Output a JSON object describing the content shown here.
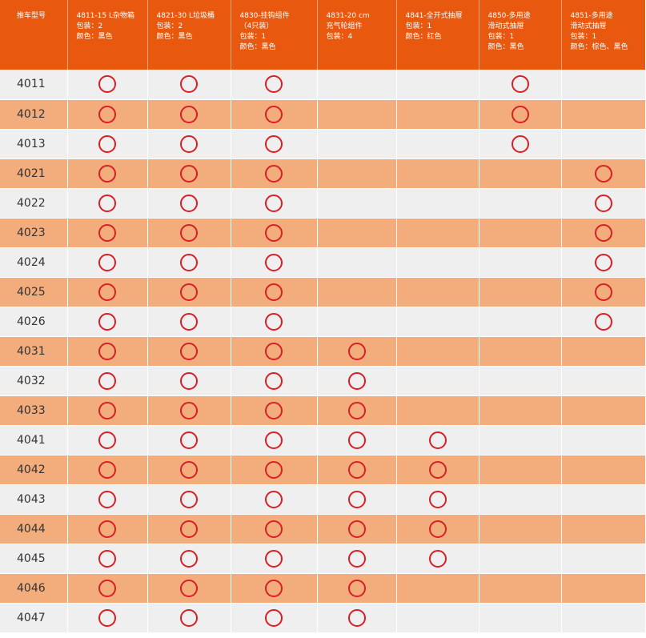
{
  "table": {
    "headers": [
      "推车型号",
      "4811-15 L杂物箱\n包装：2\n颜色：黑色",
      "4821-30 L垃圾桶\n包装：2\n颜色：黑色",
      "4830-挂钩组件\n（4只装）\n包装：1\n颜色：黑色",
      "4831-20 cm\n充气轮组件\n包装：4",
      "4841-全开式抽屉\n包装：1\n颜色：红色",
      "4850-多用途\n滑动式抽屉\n包装：1\n颜色：黑色",
      "4851-多用途\n滑动式抽屉\n包装：1\n颜色：棕色、黑色"
    ],
    "rows": [
      {
        "model": "4011",
        "marks": [
          1,
          1,
          1,
          0,
          0,
          1,
          0
        ]
      },
      {
        "model": "4012",
        "marks": [
          1,
          1,
          1,
          0,
          0,
          1,
          0
        ]
      },
      {
        "model": "4013",
        "marks": [
          1,
          1,
          1,
          0,
          0,
          1,
          0
        ]
      },
      {
        "model": "4021",
        "marks": [
          1,
          1,
          1,
          0,
          0,
          0,
          1
        ]
      },
      {
        "model": "4022",
        "marks": [
          1,
          1,
          1,
          0,
          0,
          0,
          1
        ]
      },
      {
        "model": "4023",
        "marks": [
          1,
          1,
          1,
          0,
          0,
          0,
          1
        ]
      },
      {
        "model": "4024",
        "marks": [
          1,
          1,
          1,
          0,
          0,
          0,
          1
        ]
      },
      {
        "model": "4025",
        "marks": [
          1,
          1,
          1,
          0,
          0,
          0,
          1
        ]
      },
      {
        "model": "4026",
        "marks": [
          1,
          1,
          1,
          0,
          0,
          0,
          1
        ]
      },
      {
        "model": "4031",
        "marks": [
          1,
          1,
          1,
          1,
          0,
          0,
          0
        ]
      },
      {
        "model": "4032",
        "marks": [
          1,
          1,
          1,
          1,
          0,
          0,
          0
        ]
      },
      {
        "model": "4033",
        "marks": [
          1,
          1,
          1,
          1,
          0,
          0,
          0
        ]
      },
      {
        "model": "4041",
        "marks": [
          1,
          1,
          1,
          1,
          1,
          0,
          0
        ]
      },
      {
        "model": "4042",
        "marks": [
          1,
          1,
          1,
          1,
          1,
          0,
          0
        ]
      },
      {
        "model": "4043",
        "marks": [
          1,
          1,
          1,
          1,
          1,
          0,
          0
        ]
      },
      {
        "model": "4044",
        "marks": [
          1,
          1,
          1,
          1,
          1,
          0,
          0
        ]
      },
      {
        "model": "4045",
        "marks": [
          1,
          1,
          1,
          1,
          1,
          0,
          0
        ]
      },
      {
        "model": "4046",
        "marks": [
          1,
          1,
          1,
          1,
          0,
          0,
          0
        ]
      },
      {
        "model": "4047",
        "marks": [
          1,
          1,
          1,
          1,
          0,
          0,
          0
        ]
      }
    ],
    "mark_icon": "circle-mark-icon",
    "colors": {
      "header_bg": "#e8590f",
      "header_text": "#ffffff",
      "row_light": "#efefef",
      "row_orange": "#f3ac7c",
      "mark": "#d81f26"
    }
  }
}
